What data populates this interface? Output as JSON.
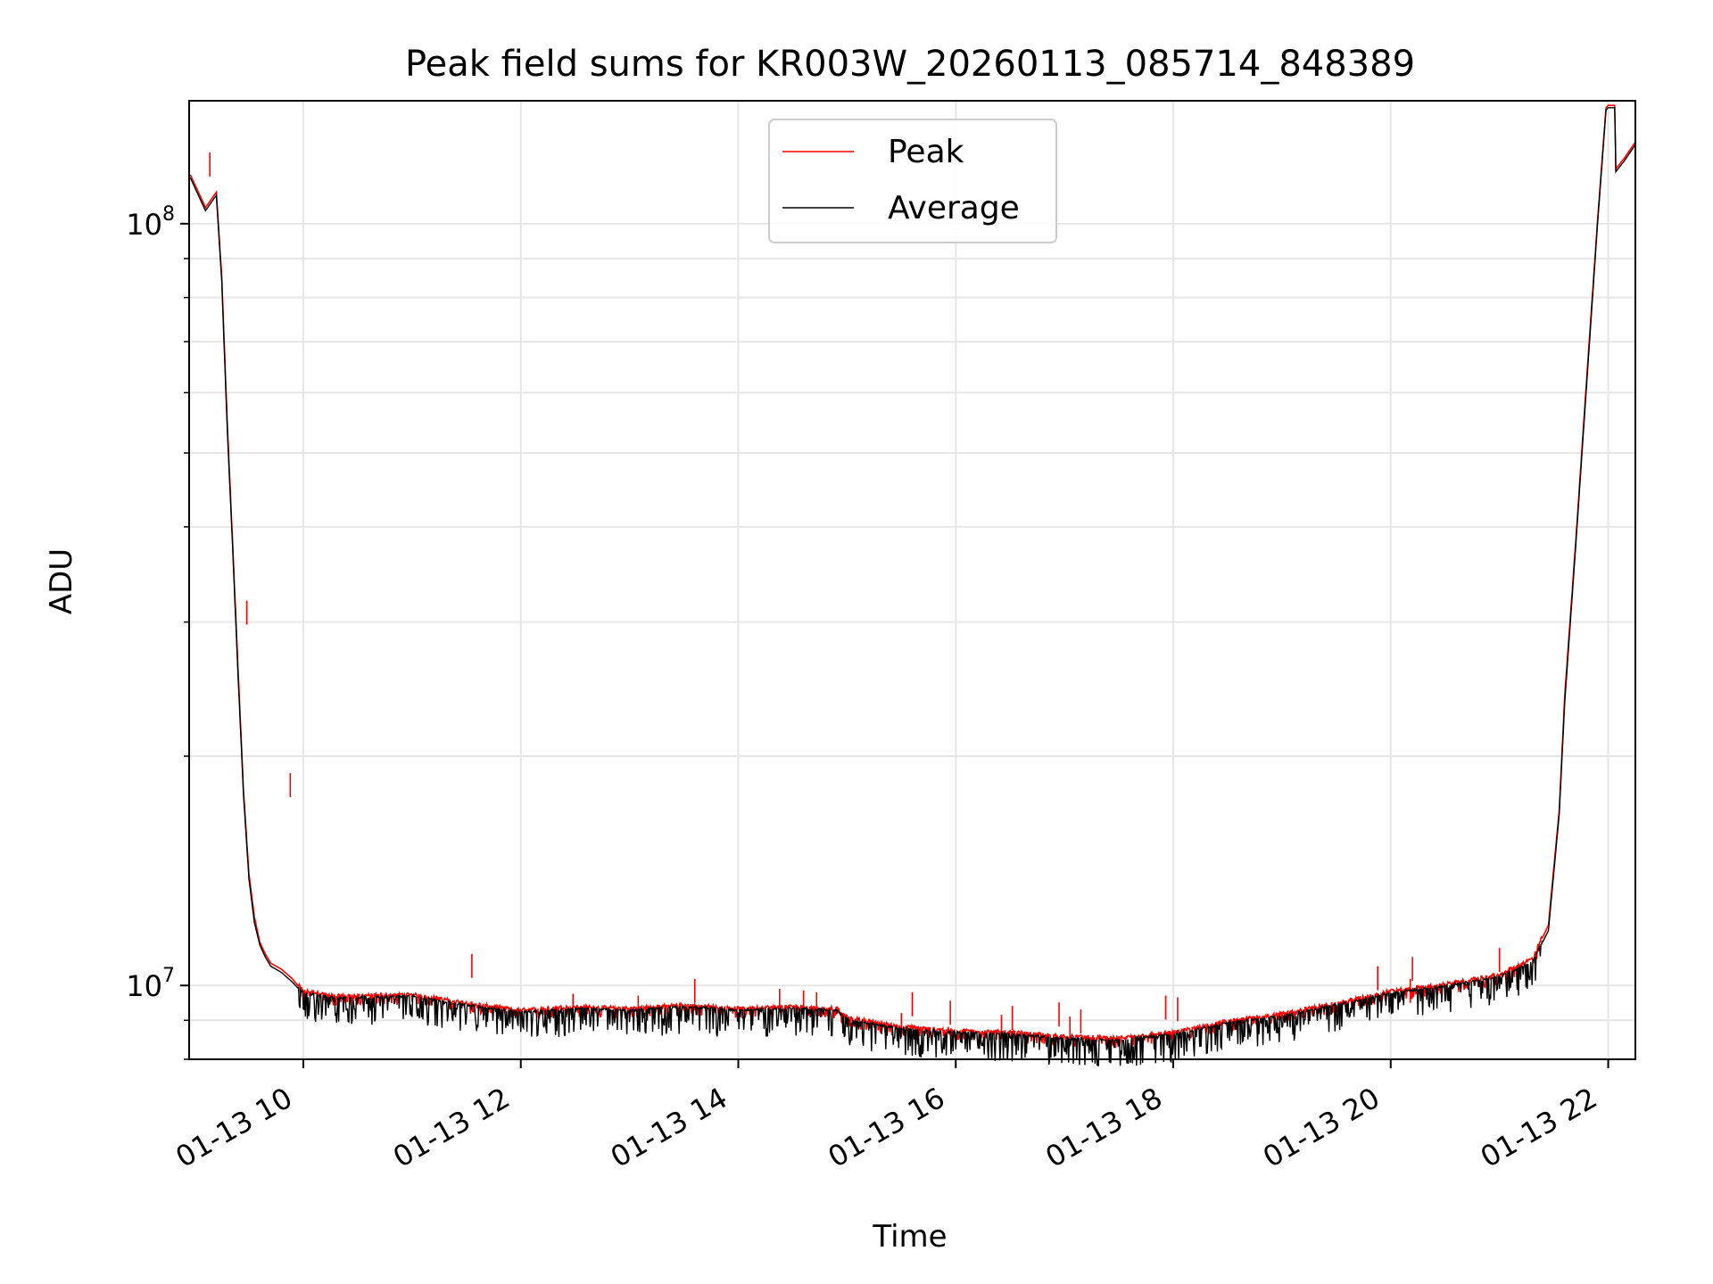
{
  "chart_data": {
    "type": "line",
    "title": "Peak field sums for KR003W_20260113_085714_848389",
    "xlabel": "Time",
    "ylabel": "ADU",
    "yscale": "log",
    "ylim": [
      8000000,
      145000000
    ],
    "xlim": [
      8.95,
      22.25
    ],
    "grid": true,
    "legend_position": "upper-center",
    "x_tick_values": [
      10,
      12,
      14,
      16,
      18,
      20,
      22
    ],
    "x_tick_labels": [
      "01-13 10",
      "01-13 12",
      "01-13 14",
      "01-13 16",
      "01-13 18",
      "01-13 20",
      "01-13 22"
    ],
    "y_major_ticks": [
      {
        "value": 10000000,
        "base": "10",
        "exp": "7"
      },
      {
        "value": 100000000,
        "base": "10",
        "exp": "8"
      }
    ],
    "y_minor_ticks": [
      8000000,
      9000000,
      20000000,
      30000000,
      40000000,
      50000000,
      60000000,
      70000000,
      80000000,
      90000000
    ],
    "series": [
      {
        "name": "Peak",
        "color": "#ff0000",
        "x": [
          8.96,
          9.1,
          9.2,
          9.25,
          9.3,
          9.35,
          9.4,
          9.45,
          9.5,
          9.55,
          9.6,
          9.65,
          9.7,
          9.8,
          9.9,
          10.0,
          10.3,
          11.0,
          11.5,
          12.0,
          12.5,
          13.0,
          13.5,
          14.0,
          14.5,
          14.9,
          15.0,
          15.5,
          16.0,
          16.5,
          17.0,
          17.5,
          18.0,
          18.5,
          19.0,
          19.5,
          20.0,
          20.5,
          21.0,
          21.3,
          21.45,
          21.55,
          21.6,
          21.7,
          21.8,
          21.9,
          21.98,
          22.0,
          22.06,
          22.07,
          22.15,
          22.25
        ],
        "values": [
          116000000,
          105000000,
          110000000,
          85000000,
          55000000,
          38000000,
          26000000,
          18000000,
          14000000,
          12300000,
          11400000,
          11000000,
          10700000,
          10500000,
          10200000,
          9800000,
          9650000,
          9700000,
          9450000,
          9250000,
          9350000,
          9300000,
          9400000,
          9300000,
          9350000,
          9300000,
          9050000,
          8800000,
          8700000,
          8650000,
          8550000,
          8500000,
          8650000,
          8950000,
          9150000,
          9450000,
          9800000,
          10000000,
          10300000,
          10800000,
          12000000,
          17000000,
          24000000,
          38000000,
          62000000,
          100000000,
          142000000,
          143000000,
          143000000,
          118000000,
          122000000,
          128000000
        ]
      },
      {
        "name": "Average",
        "color": "#000000",
        "x": [
          8.96,
          9.1,
          9.2,
          9.25,
          9.3,
          9.35,
          9.4,
          9.45,
          9.5,
          9.55,
          9.6,
          9.65,
          9.7,
          9.8,
          9.9,
          10.0,
          10.3,
          11.0,
          11.5,
          12.0,
          12.5,
          13.0,
          13.5,
          14.0,
          14.5,
          14.9,
          15.0,
          15.5,
          16.0,
          16.5,
          17.0,
          17.5,
          18.0,
          18.5,
          19.0,
          19.5,
          20.0,
          20.5,
          21.0,
          21.3,
          21.45,
          21.55,
          21.6,
          21.7,
          21.8,
          21.9,
          21.98,
          22.0,
          22.06,
          22.07,
          22.15,
          22.25
        ],
        "values": [
          115000000,
          104000000,
          109000000,
          84000000,
          54000000,
          37500000,
          25500000,
          17800000,
          13800000,
          12100000,
          11300000,
          10900000,
          10600000,
          10400000,
          10100000,
          9750000,
          9600000,
          9650000,
          9400000,
          9200000,
          9300000,
          9250000,
          9350000,
          9250000,
          9300000,
          9250000,
          9000000,
          8750000,
          8650000,
          8600000,
          8500000,
          8450000,
          8600000,
          8900000,
          9100000,
          9400000,
          9750000,
          9950000,
          10250000,
          10700000,
          11800000,
          16800000,
          23500000,
          37500000,
          61000000,
          99000000,
          141000000,
          142000000,
          142000000,
          117000000,
          121000000,
          127000000
        ]
      }
    ],
    "peak_spikes": [
      {
        "x": 9.14,
        "value": 124000000
      },
      {
        "x": 9.48,
        "value": 32000000
      },
      {
        "x": 9.88,
        "value": 19000000
      },
      {
        "x": 11.55,
        "value": 11000000
      },
      {
        "x": 12.48,
        "value": 9750000
      },
      {
        "x": 13.08,
        "value": 9700000
      },
      {
        "x": 13.6,
        "value": 10200000
      },
      {
        "x": 14.38,
        "value": 9900000
      },
      {
        "x": 14.6,
        "value": 9850000
      },
      {
        "x": 14.72,
        "value": 9800000
      },
      {
        "x": 15.5,
        "value": 9200000
      },
      {
        "x": 15.6,
        "value": 9800000
      },
      {
        "x": 15.95,
        "value": 9550000
      },
      {
        "x": 16.42,
        "value": 9150000
      },
      {
        "x": 16.52,
        "value": 9400000
      },
      {
        "x": 16.95,
        "value": 9500000
      },
      {
        "x": 17.05,
        "value": 9100000
      },
      {
        "x": 17.15,
        "value": 9300000
      },
      {
        "x": 17.93,
        "value": 9700000
      },
      {
        "x": 18.04,
        "value": 9650000
      },
      {
        "x": 19.88,
        "value": 10600000
      },
      {
        "x": 20.18,
        "value": 10200000
      },
      {
        "x": 20.2,
        "value": 10900000
      },
      {
        "x": 21.0,
        "value": 11200000
      }
    ]
  }
}
